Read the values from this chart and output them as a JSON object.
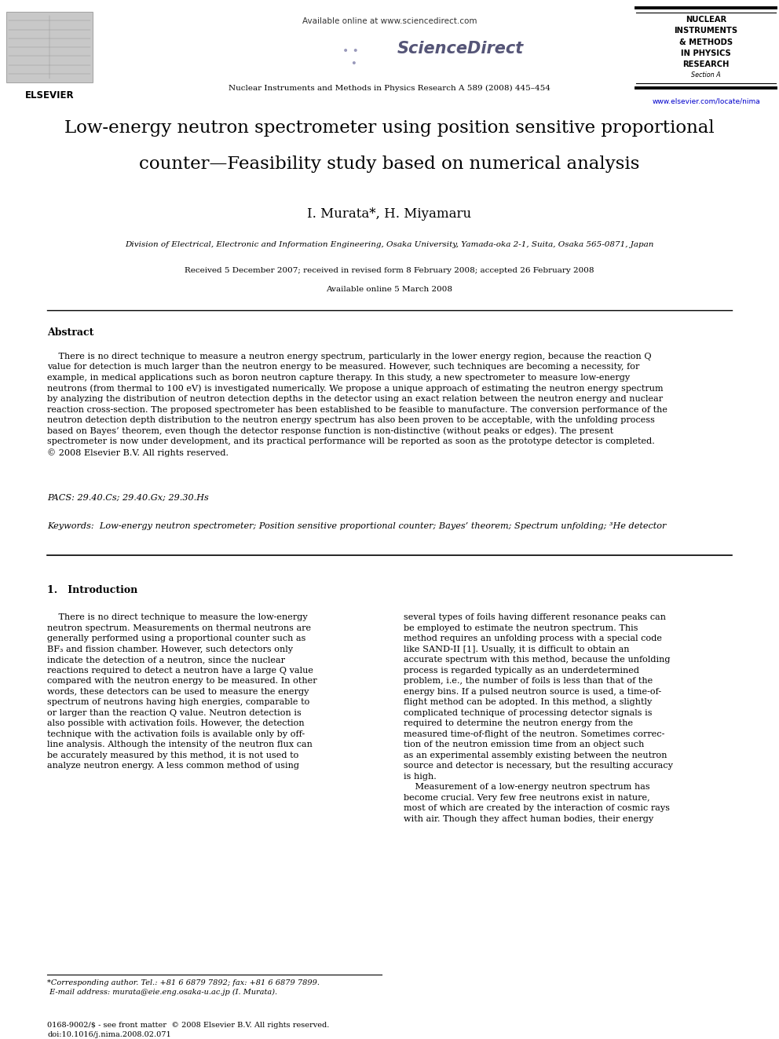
{
  "page_width": 9.92,
  "page_height": 13.23,
  "background_color": "#ffffff",
  "header_available": "Available online at www.sciencedirect.com",
  "header_journal": "Nuclear Instruments and Methods in Physics Research A 589 (2008) 445–454",
  "header_url": "www.elsevier.com/locate/nima",
  "journal_box": [
    "NUCLEAR",
    "INSTRUMENTS",
    "& METHODS",
    "IN PHYSICS",
    "RESEARCH",
    "Section A"
  ],
  "elsevier_text": "ELSEVIER",
  "sciencedirect_text": "ScienceDirect",
  "title_line1": "Low-energy neutron spectrometer using position sensitive proportional",
  "title_line2": "counter—Feasibility study based on numerical analysis",
  "authors": "I. Murata*, H. Miyamaru",
  "affiliation": "Division of Electrical, Electronic and Information Engineering, Osaka University, Yamada-oka 2-1, Suita, Osaka 565-0871, Japan",
  "received": "Received 5 December 2007; received in revised form 8 February 2008; accepted 26 February 2008",
  "available_online": "Available online 5 March 2008",
  "abstract_heading": "Abstract",
  "abstract_body": "    There is no direct technique to measure a neutron energy spectrum, particularly in the lower energy region, because the reaction Q\nvalue for detection is much larger than the neutron energy to be measured. However, such techniques are becoming a necessity, for\nexample, in medical applications such as boron neutron capture therapy. In this study, a new spectrometer to measure low-energy\nneutrons (from thermal to 100 eV) is investigated numerically. We propose a unique approach of estimating the neutron energy spectrum\nby analyzing the distribution of neutron detection depths in the detector using an exact relation between the neutron energy and nuclear\nreaction cross-section. The proposed spectrometer has been established to be feasible to manufacture. The conversion performance of the\nneutron detection depth distribution to the neutron energy spectrum has also been proven to be acceptable, with the unfolding process\nbased on Bayes’ theorem, even though the detector response function is non-distinctive (without peaks or edges). The present\nspectrometer is now under development, and its practical performance will be reported as soon as the prototype detector is completed.\n© 2008 Elsevier B.V. All rights reserved.",
  "pacs": "PACS: 29.40.Cs; 29.40.Gx; 29.30.Hs",
  "keywords": "Keywords:  Low-energy neutron spectrometer; Position sensitive proportional counter; Bayes’ theorem; Spectrum unfolding; ³He detector",
  "section1_title": "1.   Introduction",
  "col_left": "    There is no direct technique to measure the low-energy\nneutron spectrum. Measurements on thermal neutrons are\ngenerally performed using a proportional counter such as\nBF₃ and fission chamber. However, such detectors only\nindicate the detection of a neutron, since the nuclear\nreactions required to detect a neutron have a large Q value\ncompared with the neutron energy to be measured. In other\nwords, these detectors can be used to measure the energy\nspectrum of neutrons having high energies, comparable to\nor larger than the reaction Q value. Neutron detection is\nalso possible with activation foils. However, the detection\ntechnique with the activation foils is available only by off-\nline analysis. Although the intensity of the neutron flux can\nbe accurately measured by this method, it is not used to\nanalyze neutron energy. A less common method of using",
  "col_right": "several types of foils having different resonance peaks can\nbe employed to estimate the neutron spectrum. This\nmethod requires an unfolding process with a special code\nlike SAND-II [1]. Usually, it is difficult to obtain an\naccurate spectrum with this method, because the unfolding\nprocess is regarded typically as an underdetermined\nproblem, i.e., the number of foils is less than that of the\nenergy bins. If a pulsed neutron source is used, a time-of-\nflight method can be adopted. In this method, a slightly\ncomplicated technique of processing detector signals is\nrequired to determine the neutron energy from the\nmeasured time-of-flight of the neutron. Sometimes correc-\ntion of the neutron emission time from an object such\nas an experimental assembly existing between the neutron\nsource and detector is necessary, but the resulting accuracy\nis high.\n    Measurement of a low-energy neutron spectrum has\nbecome crucial. Very few free neutrons exist in nature,\nmost of which are created by the interaction of cosmic rays\nwith air. Though they affect human bodies, their energy",
  "footnote": "*Corresponding author. Tel.: +81 6 6879 7892; fax: +81 6 6879 7899.\n E-mail address: murata@eie.eng.osaka-u.ac.jp (I. Murata).",
  "footer": "0168-9002/$ - see front matter  © 2008 Elsevier B.V. All rights reserved.\ndoi:10.1016/j.nima.2008.02.071"
}
